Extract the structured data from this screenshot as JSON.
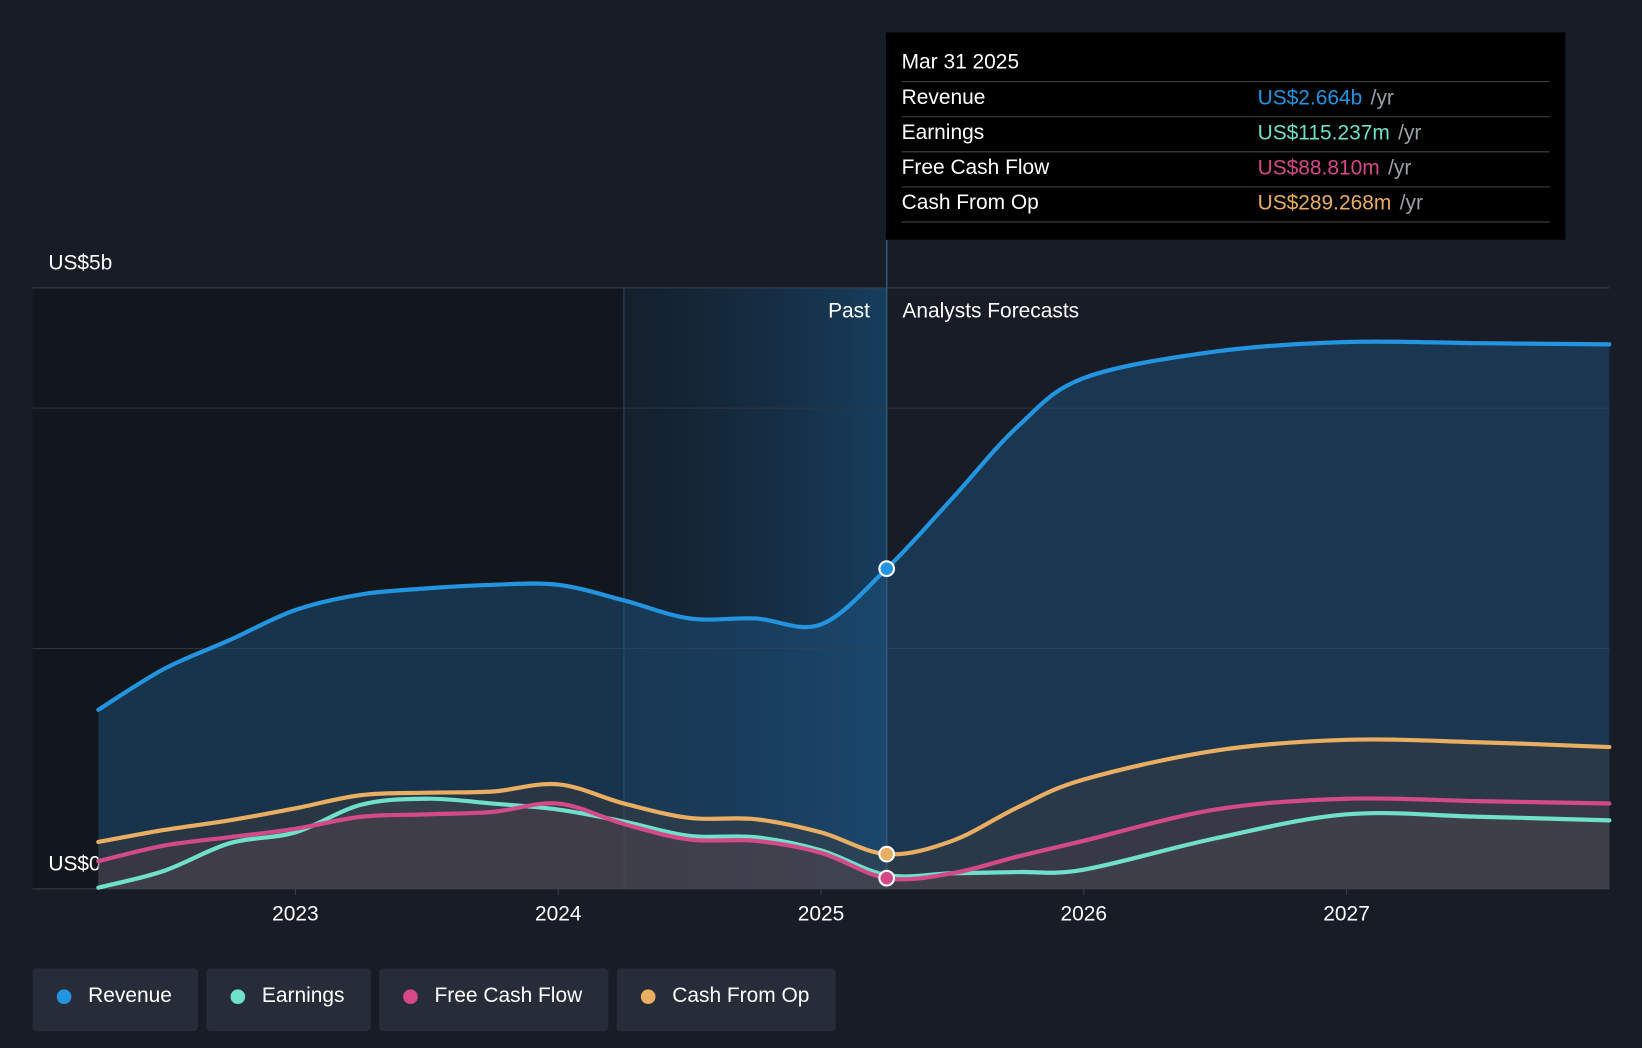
{
  "chart_data": {
    "type": "area",
    "x": [
      2022.25,
      2022.5,
      2022.75,
      2023,
      2023.25,
      2023.5,
      2023.75,
      2024,
      2024.25,
      2024.5,
      2024.75,
      2025,
      2025.25,
      2025.5,
      2025.75,
      2026,
      2026.5,
      2027,
      2027.5,
      2028
    ],
    "series": [
      {
        "name": "Revenue",
        "color": "#2394df",
        "values": [
          1.49,
          1.83,
          2.07,
          2.32,
          2.45,
          2.5,
          2.53,
          2.53,
          2.4,
          2.25,
          2.25,
          2.2,
          2.664,
          3.25,
          3.85,
          4.25,
          4.47,
          4.55,
          4.54,
          4.53
        ]
      },
      {
        "name": "Earnings",
        "color": "#6fe0c9",
        "values": [
          0.01,
          0.15,
          0.38,
          0.47,
          0.7,
          0.75,
          0.71,
          0.66,
          0.56,
          0.44,
          0.43,
          0.32,
          0.115,
          0.13,
          0.14,
          0.16,
          0.42,
          0.62,
          0.6,
          0.57
        ]
      },
      {
        "name": "Free Cash Flow",
        "color": "#d44a88",
        "values": [
          0.23,
          0.36,
          0.43,
          0.5,
          0.6,
          0.62,
          0.64,
          0.71,
          0.54,
          0.41,
          0.4,
          0.3,
          0.089,
          0.13,
          0.27,
          0.4,
          0.66,
          0.75,
          0.73,
          0.71
        ]
      },
      {
        "name": "Cash From Op",
        "color": "#e9ae62",
        "values": [
          0.39,
          0.49,
          0.57,
          0.67,
          0.78,
          0.8,
          0.81,
          0.87,
          0.71,
          0.59,
          0.58,
          0.47,
          0.289,
          0.4,
          0.68,
          0.91,
          1.15,
          1.24,
          1.22,
          1.18
        ]
      }
    ],
    "xlim": [
      2022,
      2028
    ],
    "xticks": [
      2023,
      2024,
      2025,
      2026,
      2027
    ],
    "ylim": [
      0,
      5
    ],
    "yticks": [
      {
        "value": 0,
        "label": "US$0"
      },
      {
        "value": 5,
        "label": "US$5b"
      }
    ],
    "grid_lines": [
      2,
      4
    ],
    "past_range": [
      2024.25,
      2025.25
    ],
    "past_label": "Past",
    "forecast_label": "Analysts Forecasts",
    "tooltip": {
      "title": "Mar 31 2025",
      "index": 12,
      "values": [
        "US$2.664b",
        "US$115.237m",
        "US$88.810m",
        "US$289.268m"
      ],
      "unit": "/yr"
    }
  }
}
